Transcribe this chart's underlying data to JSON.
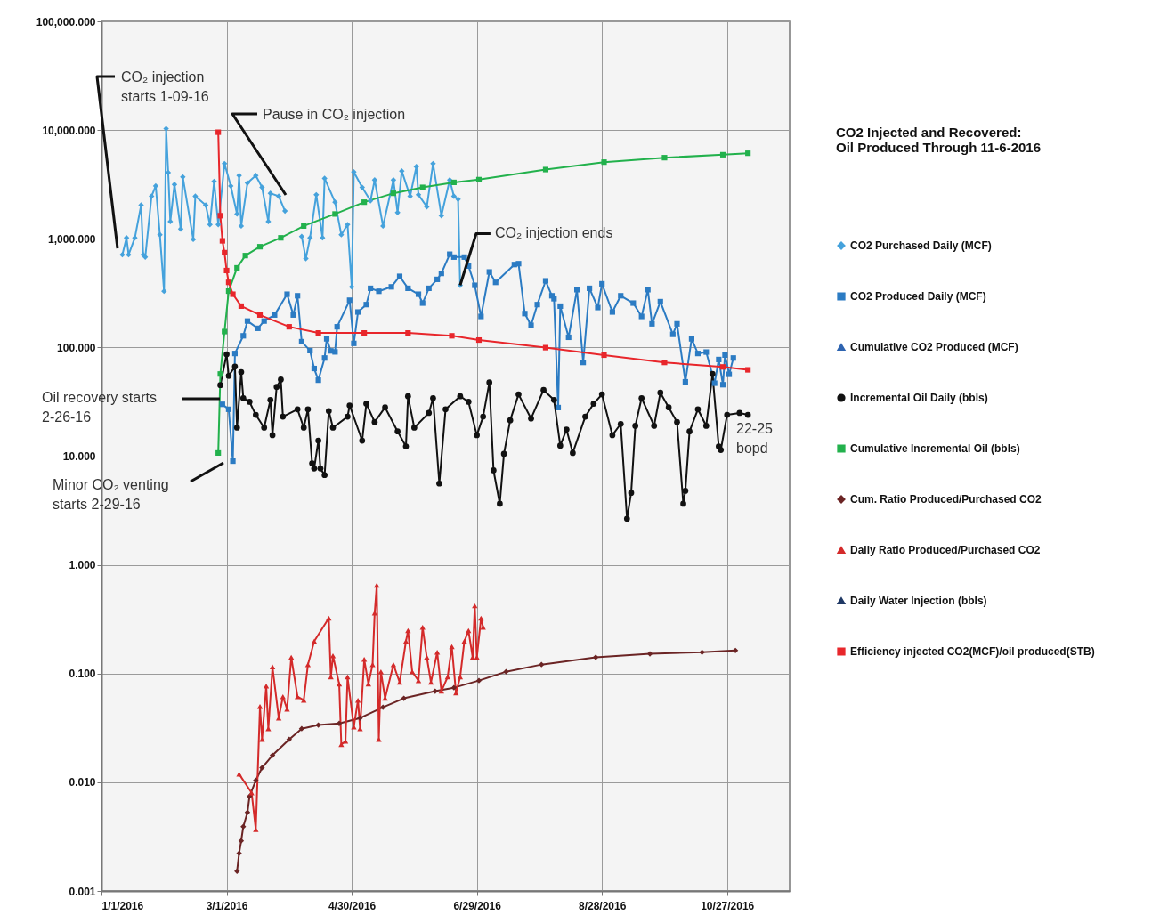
{
  "chart_data": {
    "type": "line",
    "legend_title": "CO2 Injected and Recovered:\nOil Produced Through 11-6-2016",
    "legend": "right",
    "grid": true,
    "log": "y",
    "xlim": [
      "2016-01-01",
      "2016-11-26"
    ],
    "xticks": [
      {
        "value": "2016-01-01",
        "label": "1/1/2016"
      },
      {
        "value": "2016-03-01",
        "label": "3/1/2016"
      },
      {
        "value": "2016-04-30",
        "label": "4/30/2016"
      },
      {
        "value": "2016-06-29",
        "label": "6/29/2016"
      },
      {
        "value": "2016-08-28",
        "label": "8/28/2016"
      },
      {
        "value": "2016-10-27",
        "label": "10/27/2016"
      }
    ],
    "ylim": [
      0.001,
      100000
    ],
    "yticks": [
      0.001,
      {
        "value": 0.01,
        "label": "0.010"
      },
      {
        "value": 0.1,
        "label": "0.100"
      },
      {
        "value": 1,
        "label": "1.000"
      },
      {
        "value": 10,
        "label": "10.000"
      },
      {
        "value": 100,
        "label": "100.000"
      },
      {
        "value": 1000,
        "label": "1,000.000"
      },
      {
        "value": 10000,
        "label": "10,000.000"
      },
      {
        "value": 100000,
        "label": "100,000.000"
      }
    ],
    "series": [
      {
        "name": "CO2 Purchased Daily (MCF)",
        "color": "#45a2dc",
        "marker": "diamond",
        "x": [
          "2016-01-11",
          "2016-01-13",
          "2016-01-14",
          "2016-01-17",
          "2016-01-20",
          "2016-01-21",
          "2016-01-22",
          "2016-01-25",
          "2016-01-27",
          "2016-01-29",
          "2016-01-31",
          "2016-02-01",
          "2016-02-02",
          "2016-02-03",
          "2016-02-05",
          "2016-02-08",
          "2016-02-09",
          "2016-02-14",
          "2016-02-15",
          "2016-02-20",
          "2016-02-22",
          "2016-02-24",
          "2016-02-26",
          "2016-02-29",
          "2016-03-03",
          "2016-03-06",
          "2016-03-07",
          "2016-03-08",
          "2016-03-11",
          "2016-03-15",
          "2016-03-18",
          "2016-03-21",
          "2016-03-22",
          "2016-03-26",
          "2016-03-29",
          "2016-04-02",
          "2016-04-06",
          "2016-04-08",
          "2016-04-10",
          "2016-04-13",
          "2016-04-16",
          "2016-04-17",
          "2016-04-22",
          "2016-04-25",
          "2016-04-28",
          "2016-04-30",
          "2016-05-01",
          "2016-05-05",
          "2016-05-09",
          "2016-05-11",
          "2016-05-15",
          "2016-05-20",
          "2016-05-22",
          "2016-05-24",
          "2016-05-28",
          "2016-05-31",
          "2016-06-01",
          "2016-06-05",
          "2016-06-08",
          "2016-06-12",
          "2016-06-16",
          "2016-06-18",
          "2016-06-20",
          "2016-06-21"
        ],
        "values": [
          713,
          1020,
          713,
          1020,
          2040,
          713,
          678,
          2460,
          3060,
          1090,
          329,
          10300,
          4060,
          1440,
          3160,
          1230,
          3700,
          988,
          2460,
          2040,
          1350,
          3370,
          1350,
          4910,
          3060,
          1690,
          3820,
          1310,
          3260,
          3820,
          2970,
          1440,
          2620,
          2460,
          1800,
          null,
          1050,
          657,
          1020,
          2540,
          1020,
          3590,
          2170,
          1090,
          1350,
          361,
          4120,
          2970,
          2240,
          3470,
          1310,
          3470,
          1740,
          4200,
          2460,
          4610,
          2540,
          1970,
          4910,
          1630,
          3470,
          2460,
          2310,
          373
        ]
      },
      {
        "name": "CO2 Produced Daily (MCF)",
        "color": "#2b7bc3",
        "marker": "square",
        "x": [
          "2016-02-28",
          "2016-03-02",
          "2016-03-04",
          "2016-03-05",
          "2016-03-09",
          "2016-03-11",
          "2016-03-16",
          "2016-03-19",
          "2016-03-24",
          "2016-03-30",
          "2016-04-02",
          "2016-04-04",
          "2016-04-06",
          "2016-04-10",
          "2016-04-12",
          "2016-04-14",
          "2016-04-17",
          "2016-04-18",
          "2016-04-20",
          "2016-04-22",
          "2016-04-23",
          "2016-04-29",
          "2016-05-01",
          "2016-05-03",
          "2016-05-07",
          "2016-05-09",
          "2016-05-13",
          "2016-05-19",
          "2016-05-23",
          "2016-05-27",
          "2016-06-01",
          "2016-06-03",
          "2016-06-06",
          "2016-06-10",
          "2016-06-12",
          "2016-06-16",
          "2016-06-18",
          "2016-06-23",
          "2016-06-25",
          "2016-06-28",
          "2016-07-01",
          "2016-07-05",
          "2016-07-08",
          "2016-07-17",
          "2016-07-19",
          "2016-07-22",
          "2016-07-25",
          "2016-07-28",
          "2016-08-01",
          "2016-08-04",
          "2016-08-05",
          "2016-08-07",
          "2016-08-08",
          "2016-08-12",
          "2016-08-16",
          "2016-08-19",
          "2016-08-22",
          "2016-08-26",
          "2016-08-28",
          "2016-09-02",
          "2016-09-06",
          "2016-09-12",
          "2016-09-16",
          "2016-09-19",
          "2016-09-21",
          "2016-09-25",
          "2016-10-01",
          "2016-10-03",
          "2016-10-07",
          "2016-10-10",
          "2016-10-13",
          "2016-10-17",
          "2016-10-21",
          "2016-10-23",
          "2016-10-25",
          "2016-10-26",
          "2016-10-28",
          "2016-10-30"
        ],
        "values": [
          30,
          27,
          9,
          88,
          128,
          175,
          150,
          175,
          199,
          309,
          199,
          299,
          113,
          93.5,
          64,
          50,
          80,
          120,
          93,
          91,
          155,
          272,
          109,
          212,
          248,
          350,
          329,
          361,
          451,
          350,
          309,
          256,
          350,
          423,
          480,
          721,
          678,
          678,
          561,
          373,
          193,
          495,
          397,
          579,
          590,
          205,
          160,
          248,
          410,
          299,
          281,
          28,
          240,
          124,
          340,
          72.8,
          350,
          233,
          385,
          212,
          299,
          256,
          193,
          340,
          165,
          264,
          132,
          165,
          48.3,
          120,
          88,
          90.7,
          46.9,
          77.5,
          45.4,
          85.1,
          56.6,
          80
        ]
      },
      {
        "name": "Cumulative CO2 Produced (MCF)",
        "color": "#2e64b0",
        "marker": "triangle"
      },
      {
        "name": "Incremental Oil Daily (bbls)",
        "color": "#111111",
        "marker": "circle",
        "x": [
          "2016-02-27",
          "2016-03-01",
          "2016-03-02",
          "2016-03-05",
          "2016-03-06",
          "2016-03-08",
          "2016-03-09",
          "2016-03-12",
          "2016-03-15",
          "2016-03-19",
          "2016-03-22",
          "2016-03-23",
          "2016-03-25",
          "2016-03-27",
          "2016-03-28",
          "2016-04-04",
          "2016-04-07",
          "2016-04-09",
          "2016-04-11",
          "2016-04-12",
          "2016-04-14",
          "2016-04-15",
          "2016-04-17",
          "2016-04-19",
          "2016-04-21",
          "2016-04-28",
          "2016-04-29",
          "2016-05-05",
          "2016-05-07",
          "2016-05-11",
          "2016-05-16",
          "2016-05-22",
          "2016-05-26",
          "2016-05-27",
          "2016-05-30",
          "2016-06-06",
          "2016-06-08",
          "2016-06-11",
          "2016-06-14",
          "2016-06-21",
          "2016-06-25",
          "2016-06-29",
          "2016-07-02",
          "2016-07-05",
          "2016-07-07",
          "2016-07-10",
          "2016-07-12",
          "2016-07-15",
          "2016-07-19",
          "2016-07-25",
          "2016-07-31",
          "2016-08-05",
          "2016-08-08",
          "2016-08-11",
          "2016-08-14",
          "2016-08-20",
          "2016-08-24",
          "2016-08-28",
          "2016-09-02",
          "2016-09-06",
          "2016-09-09",
          "2016-09-11",
          "2016-09-13",
          "2016-09-16",
          "2016-09-22",
          "2016-09-25",
          "2016-09-29",
          "2016-10-03",
          "2016-10-06",
          "2016-10-07",
          "2016-10-09",
          "2016-10-13",
          "2016-10-17",
          "2016-10-20",
          "2016-10-23",
          "2016-10-24",
          "2016-10-27",
          "2016-11-02",
          "2016-11-06"
        ],
        "values": [
          45,
          86.5,
          54.8,
          66.7,
          18.3,
          59.3,
          34.2,
          31.6,
          24,
          18.3,
          32.9,
          15.6,
          43.4,
          50.7,
          23.1,
          27,
          18.3,
          27,
          8.6,
          7.7,
          13.9,
          7.7,
          6.7,
          26,
          18.3,
          23.1,
          29.3,
          13.9,
          30.4,
          20.6,
          28.1,
          16.9,
          12.3,
          35.6,
          18.3,
          25,
          34.2,
          5.6,
          27,
          35.6,
          31.6,
          15.6,
          23.1,
          47.7,
          7.4,
          3.65,
          10.5,
          21.4,
          37,
          22.2,
          40.6,
          32.9,
          12.5,
          17.6,
          10.7,
          23.1,
          30.4,
          37,
          15.6,
          19.8,
          2.66,
          4.6,
          19,
          34.2,
          19,
          38.4,
          28.1,
          20.6,
          3.65,
          4.8,
          16.9,
          27,
          19,
          57,
          12.3,
          11.4,
          24,
          25,
          24
        ]
      },
      {
        "name": "Cumulative Incremental Oil (bbls)",
        "color": "#22b14c",
        "marker": "square",
        "x": [
          "2016-02-26",
          "2016-02-27",
          "2016-02-29",
          "2016-03-02",
          "2016-03-06",
          "2016-03-10",
          "2016-03-17",
          "2016-03-27",
          "2016-04-07",
          "2016-04-22",
          "2016-05-06",
          "2016-05-20",
          "2016-06-03",
          "2016-06-18",
          "2016-06-30",
          "2016-08-01",
          "2016-08-29",
          "2016-09-27",
          "2016-10-25",
          "2016-11-06"
        ],
        "values": [
          10.7,
          57,
          140,
          330,
          540,
          700,
          845,
          1020,
          1310,
          1690,
          2170,
          2620,
          2970,
          3300,
          3500,
          4330,
          5070,
          5570,
          5930,
          6120
        ]
      },
      {
        "name": "Cum. Ratio Produced/Purchased CO2",
        "color": "#6b2424",
        "marker": "diamond",
        "x": [
          "2016-03-06",
          "2016-03-07",
          "2016-03-08",
          "2016-03-09",
          "2016-03-11",
          "2016-03-12",
          "2016-03-15",
          "2016-03-18",
          "2016-03-23",
          "2016-03-31",
          "2016-04-06",
          "2016-04-14",
          "2016-04-24",
          "2016-05-04",
          "2016-05-15",
          "2016-05-25",
          "2016-06-09",
          "2016-06-18",
          "2016-06-30",
          "2016-07-13",
          "2016-07-30",
          "2016-08-25",
          "2016-09-20",
          "2016-10-15",
          "2016-10-31"
        ],
        "values": [
          0.00152,
          0.00222,
          0.00289,
          0.00391,
          0.00528,
          0.00743,
          0.0104,
          0.0136,
          0.0177,
          0.0248,
          0.0311,
          0.0336,
          0.0348,
          0.039,
          0.049,
          0.0592,
          0.0688,
          0.0741,
          0.0862,
          0.104,
          0.121,
          0.141,
          0.152,
          0.157,
          0.163
        ]
      },
      {
        "name": "Daily Ratio Produced/Purchased CO2",
        "color": "#d42a2a",
        "marker": "triangle",
        "x": [
          "2016-03-07",
          "2016-03-13",
          "2016-03-15",
          "2016-03-17",
          "2016-03-18",
          "2016-03-20",
          "2016-03-21",
          "2016-03-23",
          "2016-03-26",
          "2016-03-28",
          "2016-03-30",
          "2016-04-01",
          "2016-04-04",
          "2016-04-07",
          "2016-04-09",
          "2016-04-12",
          "2016-04-19",
          "2016-04-20",
          "2016-04-21",
          "2016-04-24",
          "2016-04-25",
          "2016-04-27",
          "2016-04-28",
          "2016-05-01",
          "2016-05-03",
          "2016-05-04",
          "2016-05-06",
          "2016-05-08",
          "2016-05-10",
          "2016-05-11",
          "2016-05-12",
          "2016-05-13",
          "2016-05-14",
          "2016-05-16",
          "2016-05-20",
          "2016-05-23",
          "2016-05-26",
          "2016-05-27",
          "2016-05-29",
          "2016-06-01",
          "2016-06-03",
          "2016-06-05",
          "2016-06-07",
          "2016-06-10",
          "2016-06-12",
          "2016-06-15",
          "2016-06-17",
          "2016-06-19",
          "2016-06-21",
          "2016-06-23",
          "2016-06-25",
          "2016-06-27",
          "2016-06-28",
          "2016-06-29",
          "2016-07-01",
          "2016-07-02"
        ],
        "values": [
          0.0119,
          0.008,
          0.00368,
          0.0497,
          0.0248,
          0.0769,
          0.0311,
          0.115,
          0.039,
          0.0613,
          0.0471,
          0.141,
          0.0613,
          0.0569,
          0.121,
          0.198,
          0.323,
          0.093,
          0.146,
          0.08,
          0.0222,
          0.0239,
          0.093,
          0.0323,
          0.0569,
          0.0311,
          0.135,
          0.08,
          0.121,
          0.361,
          0.65,
          0.0248,
          0.104,
          0.0592,
          0.121,
          0.083,
          0.198,
          0.248,
          0.104,
          0.0861,
          0.267,
          0.141,
          0.083,
          0.157,
          0.0688,
          0.093,
          0.177,
          0.0662,
          0.093,
          0.198,
          0.248,
          0.141,
          0.42,
          0.141,
          0.323,
          0.267
        ]
      },
      {
        "name": "Daily Water Injection (bbls)",
        "color": "#1f3864",
        "marker": "triangle"
      },
      {
        "name": "Efficiency injected CO2(MCF)/oil produced(STB)",
        "color": "#e8262b",
        "marker": "square",
        "x": [
          "2016-02-26",
          "2016-02-27",
          "2016-02-28",
          "2016-02-29",
          "2016-03-01",
          "2016-03-02",
          "2016-03-04",
          "2016-03-08",
          "2016-03-17",
          "2016-03-31",
          "2016-04-14",
          "2016-05-06",
          "2016-05-27",
          "2016-06-17",
          "2016-06-30",
          "2016-08-01",
          "2016-08-29",
          "2016-09-27",
          "2016-10-25",
          "2016-11-06"
        ],
        "values": [
          9550,
          1630,
          957,
          745,
          510,
          397,
          309,
          240,
          199,
          155,
          136,
          136,
          136,
          128,
          117,
          99.6,
          85,
          72.8,
          66.2,
          62.2
        ]
      }
    ],
    "annotations": [
      "CO₂ injection\nstarts 1-09-16",
      "Pause in CO₂ injection",
      {
        "text": "CO₂ injection ends",
        "x": "2016-06-21",
        "y": 373
      },
      "Oil recovery starts\n2-26-16",
      "Minor CO₂ venting\nstarts 2-29-16",
      "22-25\nbopd"
    ]
  }
}
